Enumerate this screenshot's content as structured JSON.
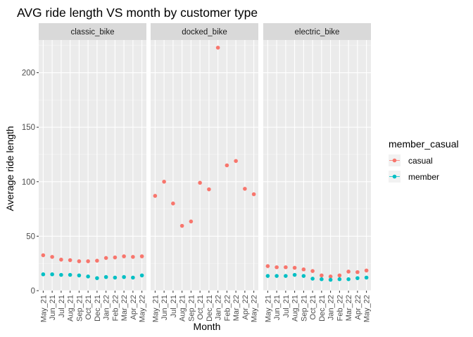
{
  "chart_data": {
    "type": "scatter",
    "title": "AVG ride length VS month by customer type",
    "xlabel": "Month",
    "ylabel": "Average ride length",
    "ylim": [
      0,
      230
    ],
    "yticks": [
      0,
      50,
      100,
      150,
      200
    ],
    "grid": true,
    "legend_position": "right",
    "legend_title": "member_casual",
    "categories": [
      "May_21",
      "Jun_21",
      "Jul_21",
      "Aug_21",
      "Sep_21",
      "Oct_21",
      "Dec_21",
      "Jan_22",
      "Feb_22",
      "Mar_22",
      "Apr_22",
      "May_22"
    ],
    "series_meta": [
      {
        "name": "casual",
        "color": "#F8766D"
      },
      {
        "name": "member",
        "color": "#00BFC4"
      }
    ],
    "panels": [
      {
        "name": "classic_bike",
        "series": [
          {
            "name": "casual",
            "values": [
              32.5,
              31,
              28.5,
              28,
              27,
              27,
              27.5,
              30,
              30.5,
              31.5,
              31,
              31.5
            ]
          },
          {
            "name": "member",
            "values": [
              15,
              15,
              14.5,
              14.5,
              14,
              13,
              11.5,
              12.5,
              12,
              12.5,
              12,
              14
            ]
          }
        ]
      },
      {
        "name": "docked_bike",
        "series": [
          {
            "name": "casual",
            "values": [
              87,
              100,
              80,
              59.5,
              63.5,
              99,
              93,
              223,
              115,
              119,
              93.5,
              88.5
            ]
          },
          {
            "name": "member",
            "values": []
          }
        ]
      },
      {
        "name": "electric_bike",
        "series": [
          {
            "name": "casual",
            "values": [
              22.5,
              21.5,
              21.5,
              21,
              19.5,
              18,
              14,
              13,
              14,
              17.5,
              17,
              18.5
            ]
          },
          {
            "name": "member",
            "values": [
              13.5,
              13.5,
              13.5,
              14.5,
              13.5,
              11,
              10.5,
              10,
              10.5,
              10.5,
              11.5,
              12
            ]
          }
        ]
      }
    ]
  }
}
